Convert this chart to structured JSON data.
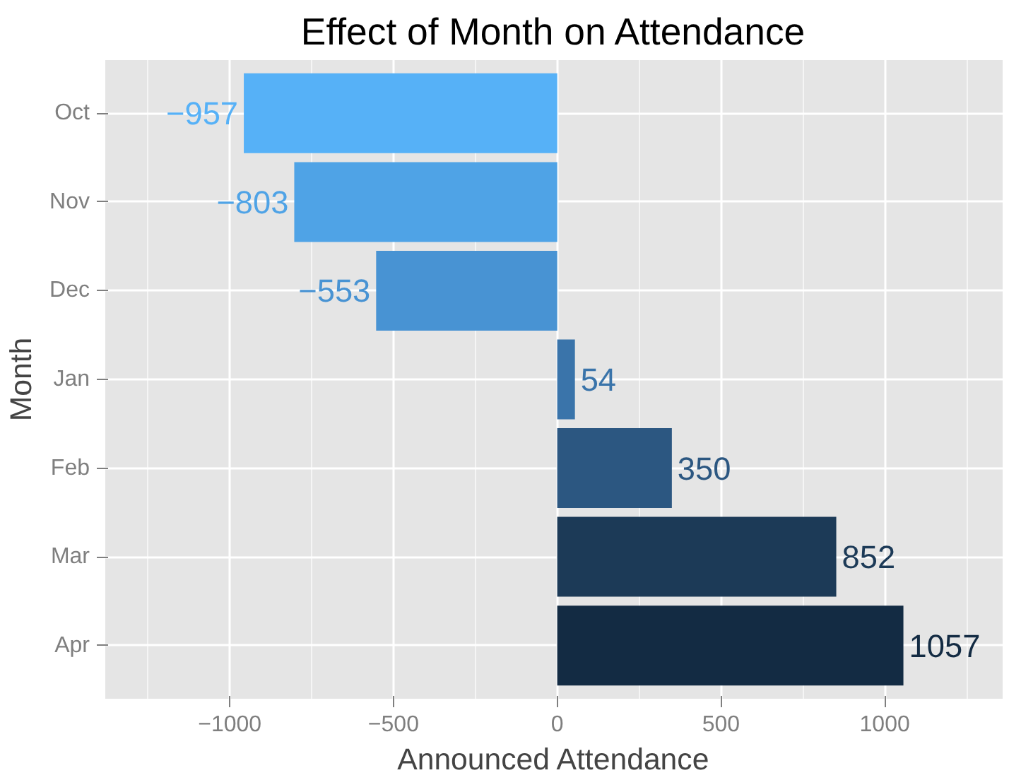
{
  "chart_data": {
    "type": "bar",
    "orientation": "horizontal",
    "title": "Effect of Month on Attendance",
    "xlabel": "Announced Attendance",
    "ylabel": "Month",
    "categories": [
      "Oct",
      "Nov",
      "Dec",
      "Jan",
      "Feb",
      "Mar",
      "Apr"
    ],
    "values": [
      -957,
      -803,
      -553,
      54,
      350,
      852,
      1057
    ],
    "colors": [
      "#56b1f7",
      "#4fa3e6",
      "#4893d3",
      "#3a74aa",
      "#2c5781",
      "#1c3a57",
      "#132b43"
    ],
    "xlim": [
      -1380,
      1360
    ],
    "xticks": [
      {
        "value": -1250,
        "label": null
      },
      -1000,
      {
        "value": -750,
        "label": null
      },
      -500,
      {
        "value": -250,
        "label": null
      },
      0,
      {
        "value": 250,
        "label": null
      },
      500,
      {
        "value": 750,
        "label": null
      },
      1000,
      {
        "value": 1250,
        "label": null
      }
    ],
    "grid": true,
    "data_labels": true
  }
}
